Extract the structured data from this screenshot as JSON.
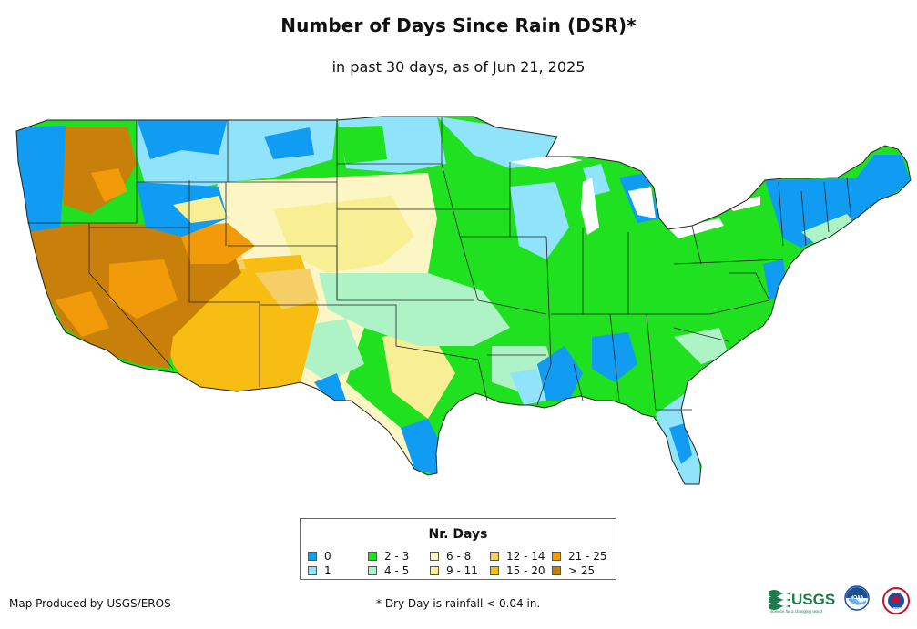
{
  "title": "Number of Days Since Rain (DSR)*",
  "subtitle": "in past 30 days, as of Jun 21, 2025",
  "legend": {
    "title": "Nr. Days",
    "items": [
      {
        "label": "0",
        "color": "#0f9cf2"
      },
      {
        "label": "1",
        "color": "#8fe3fb"
      },
      {
        "label": "2 - 3",
        "color": "#1fe11f"
      },
      {
        "label": "4 - 5",
        "color": "#aef3c6"
      },
      {
        "label": "6 - 8",
        "color": "#fbf6c4"
      },
      {
        "label": "9 - 11",
        "color": "#f8ef95"
      },
      {
        "label": "12 - 14",
        "color": "#f5cf66"
      },
      {
        "label": "15 - 20",
        "color": "#f7bd12"
      },
      {
        "label": "21 - 25",
        "color": "#f19b0b"
      },
      {
        "label": "> 25",
        "color": "#c9800a"
      }
    ]
  },
  "credit": "Map Produced by USGS/EROS",
  "footnote": "* Dry Day is rainfall < 0.04 in.",
  "logos": {
    "usgs": "USGS",
    "usgs_tagline": "science for a changing world",
    "noaa": "NOAA",
    "nws": "NWS"
  }
}
